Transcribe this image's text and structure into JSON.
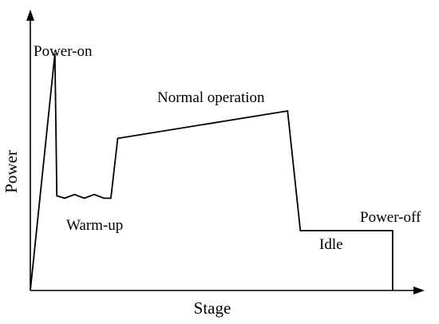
{
  "chart_data": {
    "type": "line",
    "title": "",
    "xlabel": "Stage",
    "ylabel": "Power",
    "axis_ticks": false,
    "grid": false,
    "stages": [
      {
        "name": "Power-on",
        "label": "Power-on"
      },
      {
        "name": "Warm-up",
        "label": "Warm-up"
      },
      {
        "name": "Normal operation",
        "label": "Normal operation"
      },
      {
        "name": "Idle",
        "label": "Idle"
      },
      {
        "name": "Power-off",
        "label": "Power-off"
      }
    ],
    "series": [
      {
        "name": "",
        "points": [
          [
            0.0,
            0.0
          ],
          [
            2.5,
            0.95
          ],
          [
            2.7,
            0.38
          ],
          [
            3.5,
            0.37
          ],
          [
            4.5,
            0.385
          ],
          [
            5.5,
            0.37
          ],
          [
            6.5,
            0.385
          ],
          [
            7.5,
            0.37
          ],
          [
            8.2,
            0.37
          ],
          [
            8.9,
            0.61
          ],
          [
            26.2,
            0.72
          ],
          [
            27.5,
            0.24
          ],
          [
            36.9,
            0.24
          ],
          [
            36.9,
            0.0
          ]
        ]
      }
    ],
    "xlim": [
      0,
      40
    ],
    "ylim": [
      0,
      1.12
    ]
  }
}
